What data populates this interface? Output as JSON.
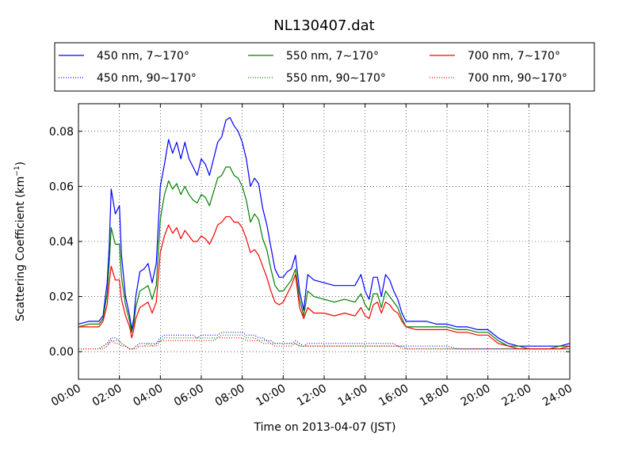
{
  "chart_data": {
    "type": "line",
    "title": "NL130407.dat",
    "xlabel": "Time on 2013-04-07 (JST)",
    "ylabel_main": "Scattering Coefficient (km",
    "ylabel_sup": "−1",
    "ylabel_close": ")",
    "x_unit": "hours",
    "xlim": [
      0,
      24
    ],
    "ylim": [
      -0.01,
      0.09
    ],
    "grid": true,
    "legend_position": "top",
    "x_ticks": [
      {
        "value": 0,
        "label": "00:00"
      },
      {
        "value": 2,
        "label": "02:00"
      },
      {
        "value": 4,
        "label": "04:00"
      },
      {
        "value": 6,
        "label": "06:00"
      },
      {
        "value": 8,
        "label": "08:00"
      },
      {
        "value": 10,
        "label": "10:00"
      },
      {
        "value": 12,
        "label": "12:00"
      },
      {
        "value": 14,
        "label": "14:00"
      },
      {
        "value": 16,
        "label": "16:00"
      },
      {
        "value": 18,
        "label": "18:00"
      },
      {
        "value": 20,
        "label": "20:00"
      },
      {
        "value": 22,
        "label": "22:00"
      },
      {
        "value": 24,
        "label": "24:00"
      }
    ],
    "y_ticks": [
      {
        "value": 0.0,
        "label": "0.00"
      },
      {
        "value": 0.02,
        "label": "0.02"
      },
      {
        "value": 0.04,
        "label": "0.04"
      },
      {
        "value": 0.06,
        "label": "0.06"
      },
      {
        "value": 0.08,
        "label": "0.08"
      }
    ],
    "x": [
      0,
      0.5,
      1.0,
      1.2,
      1.4,
      1.5,
      1.6,
      1.8,
      2.0,
      2.1,
      2.3,
      2.5,
      2.6,
      2.7,
      2.8,
      3.0,
      3.2,
      3.4,
      3.6,
      3.8,
      4.0,
      4.2,
      4.4,
      4.6,
      4.8,
      5.0,
      5.2,
      5.4,
      5.6,
      5.8,
      6.0,
      6.2,
      6.4,
      6.6,
      6.8,
      7.0,
      7.2,
      7.4,
      7.6,
      7.8,
      8.0,
      8.2,
      8.4,
      8.6,
      8.8,
      9.0,
      9.2,
      9.4,
      9.6,
      9.8,
      10.0,
      10.2,
      10.4,
      10.6,
      10.8,
      11.0,
      11.2,
      11.5,
      12.0,
      12.5,
      13.0,
      13.5,
      13.8,
      14.0,
      14.2,
      14.4,
      14.6,
      14.8,
      15.0,
      15.2,
      15.4,
      15.6,
      15.8,
      16.0,
      16.5,
      17.0,
      17.5,
      18.0,
      18.5,
      19.0,
      19.5,
      20.0,
      20.5,
      21.0,
      21.5,
      22.0,
      22.5,
      23.0,
      23.5,
      24.0
    ],
    "series": [
      {
        "name": "450 nm, 7∼170°",
        "color": "#0000ff",
        "style": "solid",
        "values": [
          0.01,
          0.011,
          0.011,
          0.013,
          0.025,
          0.038,
          0.059,
          0.05,
          0.053,
          0.035,
          0.02,
          0.013,
          0.008,
          0.012,
          0.02,
          0.029,
          0.03,
          0.032,
          0.025,
          0.032,
          0.06,
          0.068,
          0.077,
          0.072,
          0.076,
          0.07,
          0.076,
          0.07,
          0.067,
          0.064,
          0.07,
          0.068,
          0.064,
          0.07,
          0.076,
          0.078,
          0.084,
          0.085,
          0.082,
          0.08,
          0.076,
          0.07,
          0.06,
          0.063,
          0.061,
          0.052,
          0.046,
          0.038,
          0.03,
          0.027,
          0.027,
          0.029,
          0.03,
          0.035,
          0.022,
          0.015,
          0.028,
          0.026,
          0.025,
          0.024,
          0.024,
          0.024,
          0.028,
          0.022,
          0.019,
          0.027,
          0.027,
          0.02,
          0.028,
          0.026,
          0.022,
          0.019,
          0.014,
          0.011,
          0.011,
          0.011,
          0.01,
          0.01,
          0.009,
          0.009,
          0.008,
          0.008,
          0.005,
          0.003,
          0.002,
          0.002,
          0.002,
          0.002,
          0.002,
          0.003
        ]
      },
      {
        "name": "450 nm, 90∼170°",
        "color": "#0000ff",
        "style": "dotted",
        "values": [
          0.001,
          0.001,
          0.001,
          0.002,
          0.003,
          0.004,
          0.005,
          0.005,
          0.004,
          0.003,
          0.002,
          0.001,
          0.001,
          0.001,
          0.002,
          0.003,
          0.003,
          0.003,
          0.003,
          0.003,
          0.005,
          0.006,
          0.006,
          0.006,
          0.006,
          0.006,
          0.006,
          0.006,
          0.006,
          0.005,
          0.006,
          0.006,
          0.006,
          0.006,
          0.006,
          0.007,
          0.007,
          0.007,
          0.007,
          0.007,
          0.007,
          0.006,
          0.006,
          0.006,
          0.005,
          0.005,
          0.004,
          0.004,
          0.003,
          0.003,
          0.003,
          0.003,
          0.003,
          0.004,
          0.003,
          0.002,
          0.003,
          0.003,
          0.003,
          0.003,
          0.003,
          0.003,
          0.003,
          0.003,
          0.003,
          0.003,
          0.003,
          0.003,
          0.003,
          0.003,
          0.003,
          0.002,
          0.002,
          0.002,
          0.002,
          0.002,
          0.002,
          0.002,
          0.001,
          0.001,
          0.001,
          0.001,
          0.001,
          0.001,
          0.001,
          0.001,
          0.001,
          0.001,
          0.001,
          0.001
        ]
      },
      {
        "name": "550 nm, 7∼170°",
        "color": "#008000",
        "style": "solid",
        "values": [
          0.009,
          0.01,
          0.01,
          0.012,
          0.021,
          0.032,
          0.045,
          0.039,
          0.039,
          0.027,
          0.017,
          0.011,
          0.007,
          0.01,
          0.016,
          0.022,
          0.023,
          0.024,
          0.019,
          0.024,
          0.048,
          0.057,
          0.062,
          0.059,
          0.061,
          0.057,
          0.06,
          0.057,
          0.055,
          0.054,
          0.057,
          0.056,
          0.053,
          0.058,
          0.063,
          0.064,
          0.067,
          0.067,
          0.064,
          0.063,
          0.06,
          0.055,
          0.047,
          0.05,
          0.048,
          0.041,
          0.037,
          0.03,
          0.024,
          0.022,
          0.022,
          0.024,
          0.026,
          0.03,
          0.019,
          0.013,
          0.022,
          0.02,
          0.019,
          0.018,
          0.019,
          0.018,
          0.021,
          0.017,
          0.015,
          0.021,
          0.021,
          0.016,
          0.022,
          0.02,
          0.018,
          0.016,
          0.012,
          0.009,
          0.009,
          0.009,
          0.009,
          0.009,
          0.008,
          0.008,
          0.007,
          0.007,
          0.004,
          0.002,
          0.002,
          0.001,
          0.001,
          0.001,
          0.002,
          0.002
        ]
      },
      {
        "name": "550 nm, 90∼170°",
        "color": "#008000",
        "style": "dotted",
        "values": [
          0.001,
          0.001,
          0.001,
          0.002,
          0.003,
          0.003,
          0.004,
          0.004,
          0.004,
          0.003,
          0.002,
          0.001,
          0.001,
          0.001,
          0.002,
          0.002,
          0.002,
          0.003,
          0.002,
          0.003,
          0.004,
          0.005,
          0.005,
          0.005,
          0.005,
          0.005,
          0.005,
          0.005,
          0.005,
          0.005,
          0.005,
          0.005,
          0.005,
          0.005,
          0.005,
          0.006,
          0.006,
          0.006,
          0.006,
          0.006,
          0.006,
          0.005,
          0.005,
          0.005,
          0.004,
          0.004,
          0.004,
          0.003,
          0.003,
          0.003,
          0.003,
          0.003,
          0.003,
          0.003,
          0.002,
          0.002,
          0.002,
          0.002,
          0.002,
          0.002,
          0.002,
          0.002,
          0.002,
          0.002,
          0.002,
          0.002,
          0.002,
          0.002,
          0.002,
          0.002,
          0.002,
          0.002,
          0.002,
          0.001,
          0.001,
          0.001,
          0.001,
          0.001,
          0.001,
          0.001,
          0.001,
          0.001,
          0.001,
          0.001,
          0.001,
          0.001,
          0.001,
          0.001,
          0.001,
          0.001
        ]
      },
      {
        "name": "700 nm, 7∼170°",
        "color": "#ff0000",
        "style": "solid",
        "values": [
          0.009,
          0.009,
          0.009,
          0.011,
          0.017,
          0.025,
          0.031,
          0.026,
          0.026,
          0.019,
          0.013,
          0.009,
          0.005,
          0.008,
          0.012,
          0.016,
          0.017,
          0.018,
          0.014,
          0.018,
          0.036,
          0.042,
          0.046,
          0.043,
          0.045,
          0.041,
          0.044,
          0.042,
          0.04,
          0.04,
          0.042,
          0.041,
          0.039,
          0.042,
          0.046,
          0.047,
          0.049,
          0.049,
          0.047,
          0.047,
          0.045,
          0.041,
          0.036,
          0.037,
          0.035,
          0.031,
          0.027,
          0.022,
          0.018,
          0.017,
          0.018,
          0.021,
          0.024,
          0.028,
          0.016,
          0.012,
          0.016,
          0.014,
          0.014,
          0.013,
          0.014,
          0.013,
          0.016,
          0.013,
          0.012,
          0.017,
          0.018,
          0.014,
          0.018,
          0.017,
          0.015,
          0.014,
          0.011,
          0.009,
          0.008,
          0.008,
          0.008,
          0.008,
          0.007,
          0.007,
          0.006,
          0.006,
          0.003,
          0.002,
          0.001,
          0.001,
          0.001,
          0.001,
          0.001,
          0.002
        ]
      },
      {
        "name": "700 nm, 90∼170°",
        "color": "#ff0000",
        "style": "dotted",
        "values": [
          0.001,
          0.001,
          0.001,
          0.001,
          0.002,
          0.003,
          0.004,
          0.003,
          0.003,
          0.002,
          0.002,
          0.001,
          0.001,
          0.001,
          0.001,
          0.002,
          0.002,
          0.002,
          0.002,
          0.002,
          0.004,
          0.004,
          0.004,
          0.004,
          0.004,
          0.004,
          0.004,
          0.004,
          0.004,
          0.004,
          0.004,
          0.004,
          0.004,
          0.004,
          0.005,
          0.005,
          0.005,
          0.005,
          0.005,
          0.005,
          0.005,
          0.004,
          0.004,
          0.004,
          0.004,
          0.003,
          0.003,
          0.003,
          0.002,
          0.002,
          0.002,
          0.002,
          0.002,
          0.003,
          0.002,
          0.002,
          0.002,
          0.002,
          0.002,
          0.002,
          0.002,
          0.002,
          0.002,
          0.002,
          0.002,
          0.002,
          0.002,
          0.002,
          0.002,
          0.002,
          0.002,
          0.002,
          0.001,
          0.001,
          0.001,
          0.001,
          0.001,
          0.001,
          0.001,
          0.001,
          0.001,
          0.001,
          0.001,
          0.001,
          0.001,
          0.001,
          0.001,
          0.001,
          0.001,
          0.001
        ]
      }
    ]
  }
}
